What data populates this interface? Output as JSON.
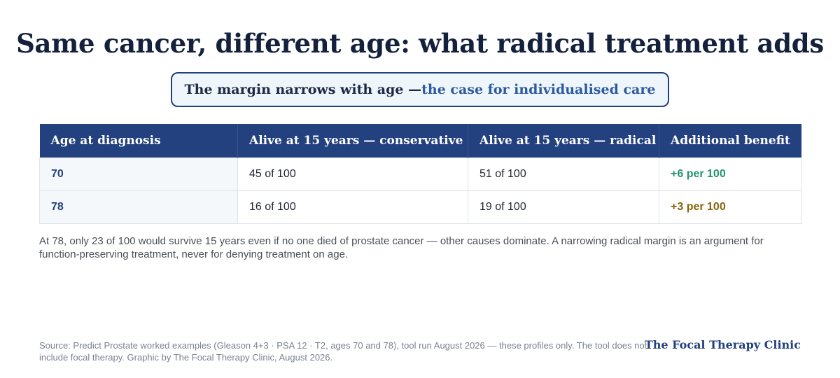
{
  "title": "Same cancer, different age: what radical treatment adds",
  "callout": {
    "lead": "The margin narrows with age — ",
    "emphasis": "the case for individualised care"
  },
  "table": {
    "headers": [
      "Age at diagnosis",
      "Alive at 15 years — conservative",
      "Alive at 15 years — radical",
      "Additional benefit"
    ],
    "rows": [
      {
        "age": "70",
        "conservative": "45 of 100",
        "radical": "51 of 100",
        "benefit": "+6 per 100",
        "benefit_color": "#22946b"
      },
      {
        "age": "78",
        "conservative": "16 of 100",
        "radical": "19 of 100",
        "benefit": "+3 per 100",
        "benefit_color": "#8a6410"
      }
    ]
  },
  "note": "At 78, only 23 of 100 would survive 15 years even if no one died of prostate cancer — other causes dominate. A narrowing radical margin is an argument for function-preserving treatment, never for denying treatment on age.",
  "source": "Source: Predict Prostate worked examples (Gleason 4+3 · PSA 12 · T2, ages 70 and 78), tool run August 2026 — these profiles only. The tool does not include focal therapy. Graphic by The Focal Therapy Clinic, August 2026.",
  "brand": "The Focal Therapy Clinic",
  "colors": {
    "header_bg": "#23407f",
    "title": "#14213d",
    "accent": "#2d5a9e"
  }
}
